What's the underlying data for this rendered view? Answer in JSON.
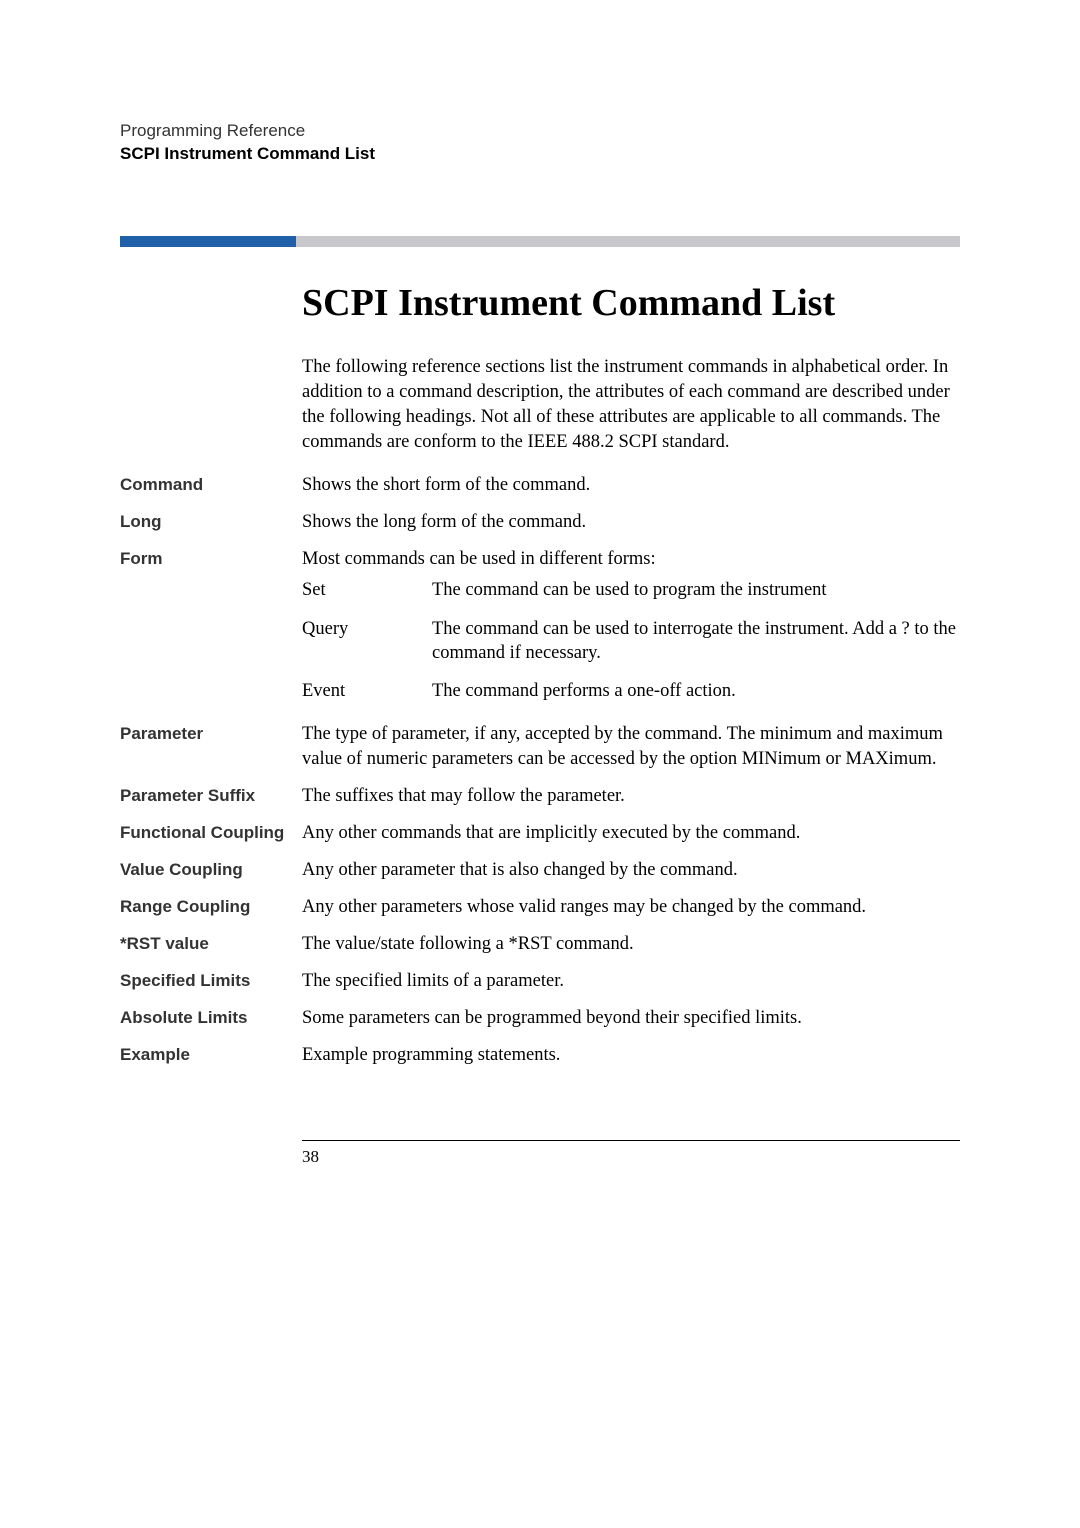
{
  "header": {
    "line1": "Programming Reference",
    "line2": "SCPI Instrument Command List"
  },
  "title": "SCPI Instrument Command List",
  "intro": "The following reference sections list the instrument commands in alphabetical order. In addition to a command description, the attributes of each command are described under the following headings. Not all of these attributes are applicable to all commands. The commands are conform to the IEEE 488.2 SCPI standard.",
  "rows": [
    {
      "label": "Command",
      "desc": "Shows the short form of the command."
    },
    {
      "label": "Long",
      "desc": "Shows the long form of the command."
    },
    {
      "label": "Form",
      "desc": "Most commands can be used in different forms:",
      "subrows": [
        {
          "k": "Set",
          "v": "The command can be used to program the instrument"
        },
        {
          "k": "Query",
          "v": "The command can be used to interrogate the instrument. Add a ? to the command if necessary."
        },
        {
          "k": "Event",
          "v": "The command performs a one-off action."
        }
      ]
    },
    {
      "label": "Parameter",
      "desc": "The type of parameter, if any, accepted by the command. The minimum and maximum value of numeric parameters can be accessed by the option MINimum or MAXimum."
    },
    {
      "label": "Parameter Suffix",
      "desc": "The suffixes that may follow the parameter."
    },
    {
      "label": "Functional Coupling",
      "desc": "Any other commands that are implicitly executed by the command."
    },
    {
      "label": "Value Coupling",
      "desc": "Any other parameter that is also changed by the command."
    },
    {
      "label": "Range Coupling",
      "desc": "Any other parameters whose valid ranges may be changed by the command."
    },
    {
      "label": "*RST value",
      "desc": "The value/state following a *RST command."
    },
    {
      "label": "Specified Limits",
      "desc": "The specified limits of a parameter."
    },
    {
      "label": "Absolute Limits",
      "desc": "Some parameters can be programmed beyond their specified limits."
    },
    {
      "label": "Example",
      "desc": "Example programming statements."
    }
  ],
  "page_number": "38",
  "colors": {
    "bar_blue": "#2060a8",
    "bar_gray": "#c8c8cc",
    "text": "#000000",
    "bg": "#ffffff"
  }
}
